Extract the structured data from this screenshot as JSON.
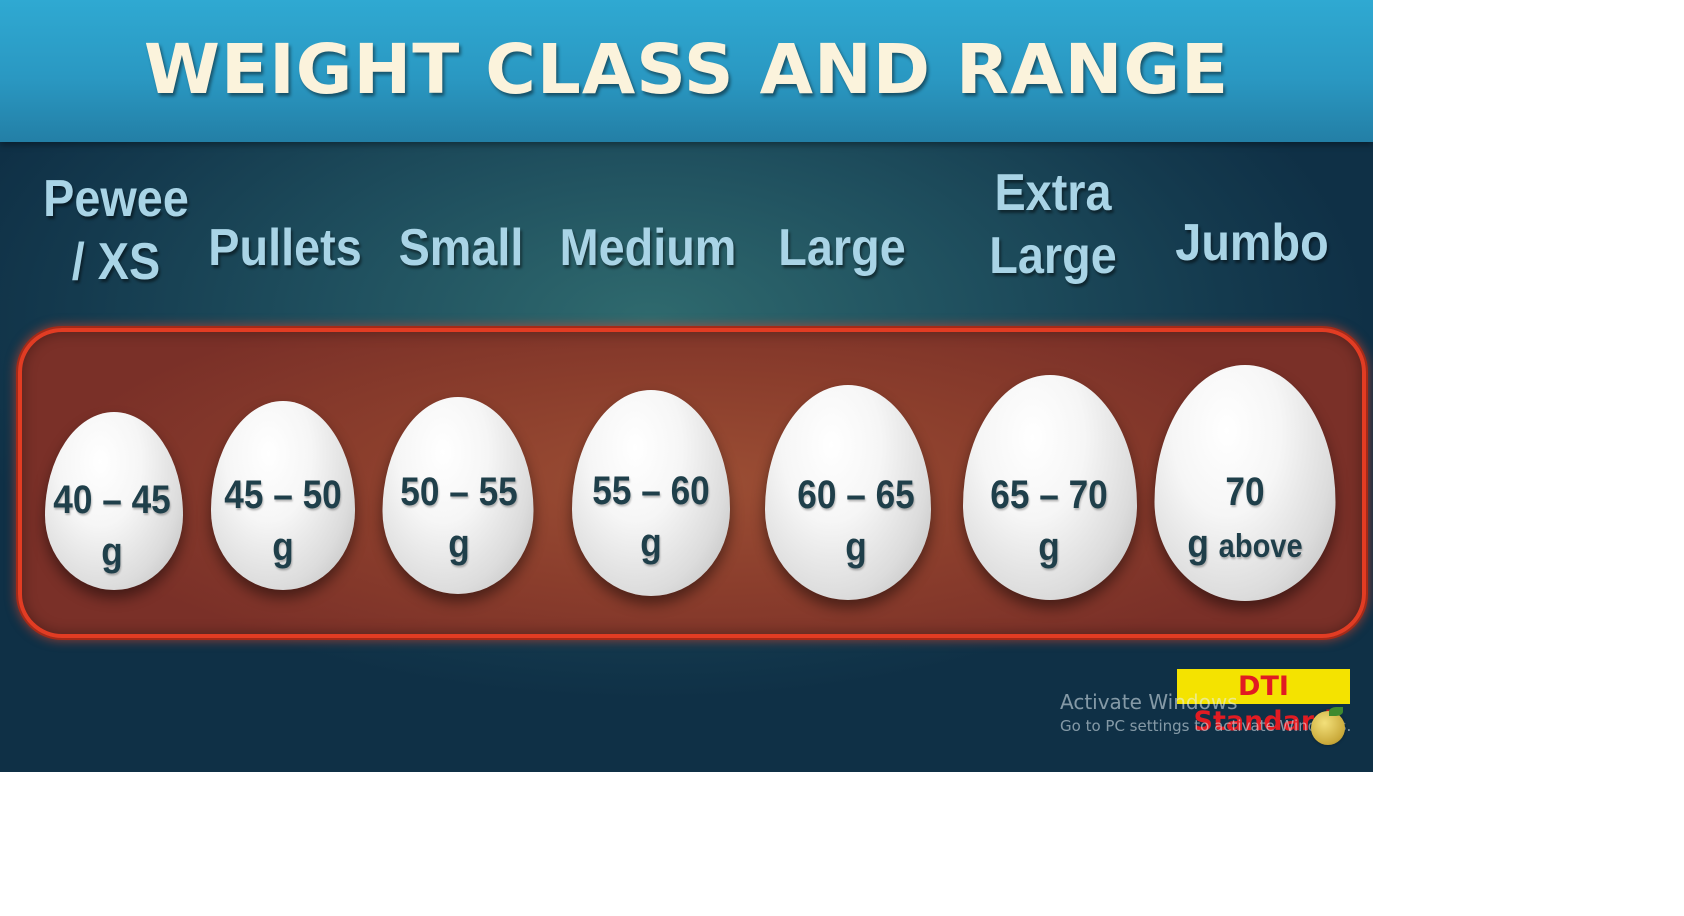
{
  "title": "WEIGHT CLASS AND RANGE",
  "classes": [
    {
      "line1": "Pewee",
      "line2": "/ XS",
      "range_line1": "40 – 45",
      "range_line2": "g"
    },
    {
      "line1": "Pullets",
      "line2": "",
      "range_line1": "45 – 50",
      "range_line2": "g"
    },
    {
      "line1": "Small",
      "line2": "",
      "range_line1": "50 – 55",
      "range_line2": "g"
    },
    {
      "line1": "Medium",
      "line2": "",
      "range_line1": "55 – 60",
      "range_line2": "g"
    },
    {
      "line1": "Large",
      "line2": "",
      "range_line1": "60 – 65",
      "range_line2": "g"
    },
    {
      "line1": "Extra",
      "line2": "Large",
      "range_line1": "65 – 70",
      "range_line2": "g"
    },
    {
      "line1": "Jumbo",
      "line2": "",
      "range_line1": "70",
      "range_line2_g": "g",
      "range_line2_rest": "above"
    }
  ],
  "badge": "DTI Standard",
  "watermark": {
    "title": "Activate Windows",
    "subtitle": "Go to PC settings to activate Windows."
  },
  "colors": {
    "banner": "#2a98c2",
    "title_text": "#fbf3dc",
    "class_text": "#a9d4e6",
    "tray": "#8a3d2c",
    "tray_border": "#e23c23",
    "badge_bg": "#f4e300",
    "badge_text": "#e11b22"
  }
}
